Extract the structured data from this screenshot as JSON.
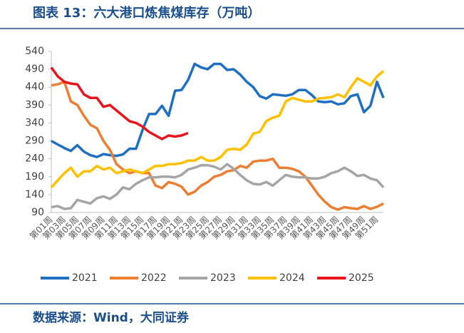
{
  "chart_data": {
    "type": "line",
    "title": "图表 13：六大港口炼焦煤库存（万吨）",
    "source": "数据来源：Wind，大同证券",
    "categories": [
      "第01周",
      null,
      "第03周",
      null,
      "第05周",
      null,
      "第07周",
      null,
      "第09周",
      null,
      "第11周",
      null,
      "第13周",
      null,
      "第15周",
      null,
      "第17周",
      null,
      "第19周",
      null,
      "第21周",
      null,
      "第23周",
      null,
      "第25周",
      null,
      "第27周",
      null,
      "第29周",
      null,
      "第31周",
      null,
      "第33周",
      null,
      "第35周",
      null,
      "第37周",
      null,
      "第39周",
      null,
      "第41周",
      null,
      "第43周",
      null,
      "第45周",
      null,
      "第47周",
      null,
      "第49周",
      null,
      "第51周",
      null
    ],
    "ylim": [
      90,
      540
    ],
    "yticks": [
      90,
      140,
      190,
      240,
      290,
      340,
      390,
      440,
      490,
      540
    ],
    "legend": "bottom",
    "series": [
      {
        "name": "2021",
        "color": "#1f6fc0",
        "values": [
          290,
          280,
          270,
          262,
          278,
          260,
          250,
          245,
          253,
          250,
          248,
          252,
          268,
          268,
          320,
          365,
          365,
          388,
          360,
          430,
          432,
          460,
          505,
          495,
          490,
          505,
          505,
          488,
          490,
          475,
          455,
          440,
          415,
          408,
          420,
          418,
          416,
          420,
          432,
          432,
          418,
          400,
          398,
          400,
          392,
          395,
          415,
          420,
          370,
          388,
          455,
          410
        ]
      },
      {
        "name": "2022",
        "color": "#ed7d31",
        "values": [
          445,
          448,
          455,
          400,
          390,
          360,
          335,
          325,
          290,
          265,
          225,
          210,
          200,
          205,
          200,
          200,
          165,
          158,
          175,
          170,
          162,
          140,
          148,
          165,
          175,
          190,
          195,
          205,
          208,
          220,
          215,
          232,
          235,
          235,
          240,
          215,
          215,
          212,
          205,
          190,
          165,
          140,
          120,
          105,
          98,
          105,
          102,
          100,
          108,
          100,
          106,
          115
        ]
      },
      {
        "name": "2023",
        "color": "#a5a5a5",
        "values": [
          105,
          108,
          100,
          102,
          125,
          120,
          115,
          130,
          135,
          128,
          140,
          160,
          155,
          170,
          180,
          188,
          188,
          190,
          190,
          188,
          195,
          210,
          215,
          222,
          222,
          218,
          210,
          225,
          212,
          195,
          180,
          170,
          168,
          175,
          165,
          180,
          195,
          190,
          188,
          188,
          185,
          185,
          190,
          200,
          205,
          215,
          205,
          192,
          195,
          185,
          180,
          160
        ]
      },
      {
        "name": "2024",
        "color": "#ffc000",
        "values": [
          160,
          180,
          200,
          215,
          190,
          205,
          205,
          220,
          210,
          215,
          200,
          205,
          210,
          205,
          200,
          210,
          220,
          220,
          225,
          225,
          228,
          235,
          235,
          245,
          235,
          235,
          245,
          265,
          268,
          265,
          280,
          310,
          315,
          345,
          355,
          360,
          400,
          410,
          405,
          400,
          400,
          408,
          410,
          412,
          420,
          412,
          440,
          465,
          455,
          445,
          470,
          485
        ]
      },
      {
        "name": "2025",
        "color": "#e8141b",
        "values": [
          495,
          470,
          455,
          450,
          448,
          420,
          410,
          410,
          385,
          390,
          375,
          360,
          345,
          340,
          330,
          315,
          305,
          295,
          305,
          302,
          305,
          312,
          null,
          null,
          null,
          null,
          null,
          null,
          null,
          null,
          null,
          null,
          null,
          null,
          null,
          null,
          null,
          null,
          null,
          null,
          null,
          null,
          null,
          null,
          null,
          null,
          null,
          null,
          null,
          null,
          null,
          null
        ]
      }
    ]
  }
}
